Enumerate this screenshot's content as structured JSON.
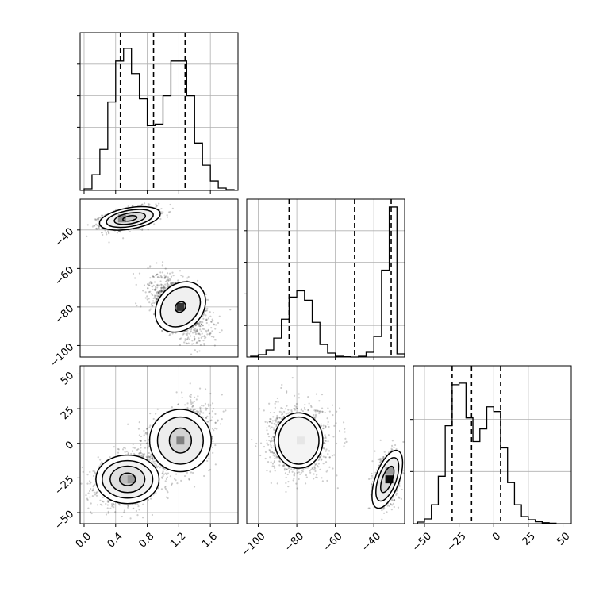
{
  "chart_data": [
    {
      "panel": "hist-param0",
      "type": "bar",
      "style": "step-histogram",
      "xlim": [
        -0.05,
        1.95
      ],
      "ylim": [
        0,
        1.0
      ],
      "grid": true,
      "edges": [
        0.0,
        0.1,
        0.2,
        0.3,
        0.4,
        0.5,
        0.6,
        0.7,
        0.8,
        0.9,
        1.0,
        1.1,
        1.2,
        1.3,
        1.4,
        1.5,
        1.6,
        1.7,
        1.8,
        1.9
      ],
      "values": [
        0.01,
        0.1,
        0.26,
        0.56,
        0.82,
        0.9,
        0.74,
        0.58,
        0.41,
        0.42,
        0.6,
        0.82,
        0.82,
        0.6,
        0.3,
        0.16,
        0.06,
        0.015,
        0.005
      ],
      "quantile_lines": [
        0.46,
        0.88,
        1.28
      ],
      "yticks": [
        0.2,
        0.4,
        0.6,
        0.8
      ]
    },
    {
      "panel": "hist-param1",
      "type": "bar",
      "style": "step-histogram",
      "xlim": [
        -106,
        -24
      ],
      "ylim": [
        0,
        1.0
      ],
      "grid": true,
      "edges": [
        -104,
        -100,
        -96,
        -92,
        -88,
        -84,
        -80,
        -76,
        -72,
        -68,
        -64,
        -60,
        -56,
        -52,
        -48,
        -44,
        -40,
        -36,
        -32,
        -28,
        -24
      ],
      "values": [
        0.005,
        0.015,
        0.045,
        0.12,
        0.24,
        0.38,
        0.42,
        0.36,
        0.22,
        0.08,
        0.025,
        0.005,
        0.002,
        0.0,
        0.005,
        0.03,
        0.13,
        0.55,
        0.95,
        0.02
      ],
      "quantile_lines": [
        -84,
        -50,
        -31
      ],
      "yticks": [
        0.2,
        0.4,
        0.6,
        0.8
      ]
    },
    {
      "panel": "hist-param2",
      "type": "bar",
      "style": "step-histogram",
      "xlim": [
        -58,
        56
      ],
      "ylim": [
        0,
        1.0
      ],
      "grid": true,
      "edges": [
        -55,
        -50,
        -45,
        -40,
        -35,
        -30,
        -25,
        -20,
        -15,
        -10,
        -5,
        0,
        5,
        10,
        15,
        20,
        25,
        30,
        35,
        40,
        45
      ],
      "values": [
        0.01,
        0.03,
        0.12,
        0.3,
        0.62,
        0.88,
        0.89,
        0.67,
        0.52,
        0.6,
        0.74,
        0.71,
        0.48,
        0.26,
        0.12,
        0.045,
        0.025,
        0.012,
        0.006,
        0.003
      ],
      "quantile_lines": [
        -30,
        -16,
        5
      ],
      "xticks": [
        -50,
        -25,
        0,
        25,
        50
      ],
      "xtick_labels": [
        "−50",
        "−25",
        "0",
        "25",
        "50"
      ],
      "yticks": [
        0.33,
        0.66
      ]
    },
    {
      "panel": "scatter-param1-vs-param0",
      "type": "scatter",
      "style": "2d-density-contour",
      "xlim": [
        -0.05,
        1.95
      ],
      "ylim": [
        -106,
        -24
      ],
      "grid": true,
      "clusters": [
        {
          "mean": [
            0.58,
            -34
          ],
          "sd": [
            0.17,
            2.8
          ],
          "rho": 0.45,
          "n": 1400
        },
        {
          "mean": [
            1.2,
            -80
          ],
          "sd": [
            0.18,
            8.0
          ],
          "rho": -0.55,
          "n": 1400
        }
      ],
      "dense_bins": [
        {
          "x": 0.58,
          "y": -33,
          "level": 0.2
        },
        {
          "x": 0.48,
          "y": -34,
          "level": 0.45
        },
        {
          "x": 1.22,
          "y": -80,
          "level": 0.8
        }
      ],
      "contours": [
        {
          "center": [
            0.58,
            -34
          ],
          "rx": 0.09,
          "ry": 1.3,
          "rot_deg": -10
        },
        {
          "center": [
            0.58,
            -34
          ],
          "rx": 0.2,
          "ry": 2.8,
          "rot_deg": -10
        },
        {
          "center": [
            0.58,
            -34
          ],
          "rx": 0.3,
          "ry": 4.2,
          "rot_deg": -10
        },
        {
          "center": [
            0.58,
            -34
          ],
          "rx": 0.39,
          "ry": 5.5,
          "rot_deg": -10
        },
        {
          "center": [
            1.22,
            -80
          ],
          "rx": 0.06,
          "ry": 3.0,
          "rot_deg": 45
        },
        {
          "center": [
            1.22,
            -80
          ],
          "rx": 0.22,
          "ry": 11.5,
          "rot_deg": 45
        },
        {
          "center": [
            1.22,
            -80
          ],
          "rx": 0.28,
          "ry": 14.5,
          "rot_deg": 45
        }
      ],
      "yticks": [
        -40,
        -60,
        -80,
        -100
      ],
      "ytick_labels": [
        "−40",
        "−60",
        "−80",
        "−100"
      ]
    },
    {
      "panel": "scatter-param2-vs-param0",
      "type": "scatter",
      "style": "2d-density-contour",
      "xlim": [
        -0.05,
        1.95
      ],
      "ylim": [
        -58,
        56
      ],
      "grid": true,
      "clusters": [
        {
          "mean": [
            0.55,
            -26
          ],
          "sd": [
            0.19,
            8.5
          ],
          "rho": 0.2,
          "n": 1400
        },
        {
          "mean": [
            1.2,
            3
          ],
          "sd": [
            0.2,
            12.0
          ],
          "rho": 0.35,
          "n": 1400
        }
      ],
      "dense_bins": [
        {
          "x": 0.5,
          "y": -26,
          "level": 0.25
        },
        {
          "x": 0.6,
          "y": -26,
          "level": 0.4
        },
        {
          "x": 1.22,
          "y": 2,
          "level": 0.5
        }
      ],
      "contours": [
        {
          "center": [
            0.55,
            -26
          ],
          "rx": 0.1,
          "ry": 4.5,
          "rot_deg": 0
        },
        {
          "center": [
            0.55,
            -26
          ],
          "rx": 0.22,
          "ry": 9.5,
          "rot_deg": 0
        },
        {
          "center": [
            0.55,
            -26
          ],
          "rx": 0.32,
          "ry": 13.5,
          "rot_deg": 0
        },
        {
          "center": [
            0.55,
            -26
          ],
          "rx": 0.4,
          "ry": 17.5,
          "rot_deg": 0
        },
        {
          "center": [
            1.22,
            2
          ],
          "rx": 0.14,
          "ry": 9.0,
          "rot_deg": 0
        },
        {
          "center": [
            1.22,
            2
          ],
          "rx": 0.29,
          "ry": 17.0,
          "rot_deg": 0
        },
        {
          "center": [
            1.22,
            2
          ],
          "rx": 0.39,
          "ry": 22.5,
          "rot_deg": 0
        }
      ],
      "xticks": [
        0.0,
        0.4,
        0.8,
        1.2,
        1.6
      ],
      "xtick_labels": [
        "0.0",
        "0.4",
        "0.8",
        "1.2",
        "1.6"
      ],
      "yticks": [
        50,
        25,
        0,
        -25,
        -50
      ],
      "ytick_labels": [
        "50",
        "25",
        "0",
        "−25",
        "−50"
      ]
    },
    {
      "panel": "scatter-param2-vs-param1",
      "type": "scatter",
      "style": "2d-density-contour",
      "xlim": [
        -106,
        -24
      ],
      "ylim": [
        -58,
        56
      ],
      "grid": true,
      "clusters": [
        {
          "mean": [
            -79,
            2
          ],
          "sd": [
            7.5,
            12.0
          ],
          "rho": 0.0,
          "n": 1400
        },
        {
          "mean": [
            -33,
            -26
          ],
          "sd": [
            3.0,
            8.5
          ],
          "rho": 0.3,
          "n": 1400
        }
      ],
      "dense_bins": [
        {
          "x": -78,
          "y": 2,
          "level": 0.1
        },
        {
          "x": -32,
          "y": -26,
          "level": 0.95
        },
        {
          "x": -32,
          "y": -20,
          "level": 0.4
        }
      ],
      "contours": [
        {
          "center": [
            -79,
            2
          ],
          "rx": 10.5,
          "ry": 17.0,
          "rot_deg": 0
        },
        {
          "center": [
            -79,
            2
          ],
          "rx": 12.5,
          "ry": 20.0,
          "rot_deg": 0
        },
        {
          "center": [
            -33,
            -26
          ],
          "rx": 2.6,
          "ry": 10.0,
          "rot_deg": 20
        },
        {
          "center": [
            -33,
            -26
          ],
          "rx": 4.6,
          "ry": 16.5,
          "rot_deg": 20
        },
        {
          "center": [
            -33,
            -26
          ],
          "rx": 6.2,
          "ry": 22.0,
          "rot_deg": 20
        }
      ],
      "xticks": [
        -100,
        -80,
        -60,
        -40
      ],
      "xtick_labels": [
        "−100",
        "−80",
        "−60",
        "−40"
      ]
    }
  ]
}
